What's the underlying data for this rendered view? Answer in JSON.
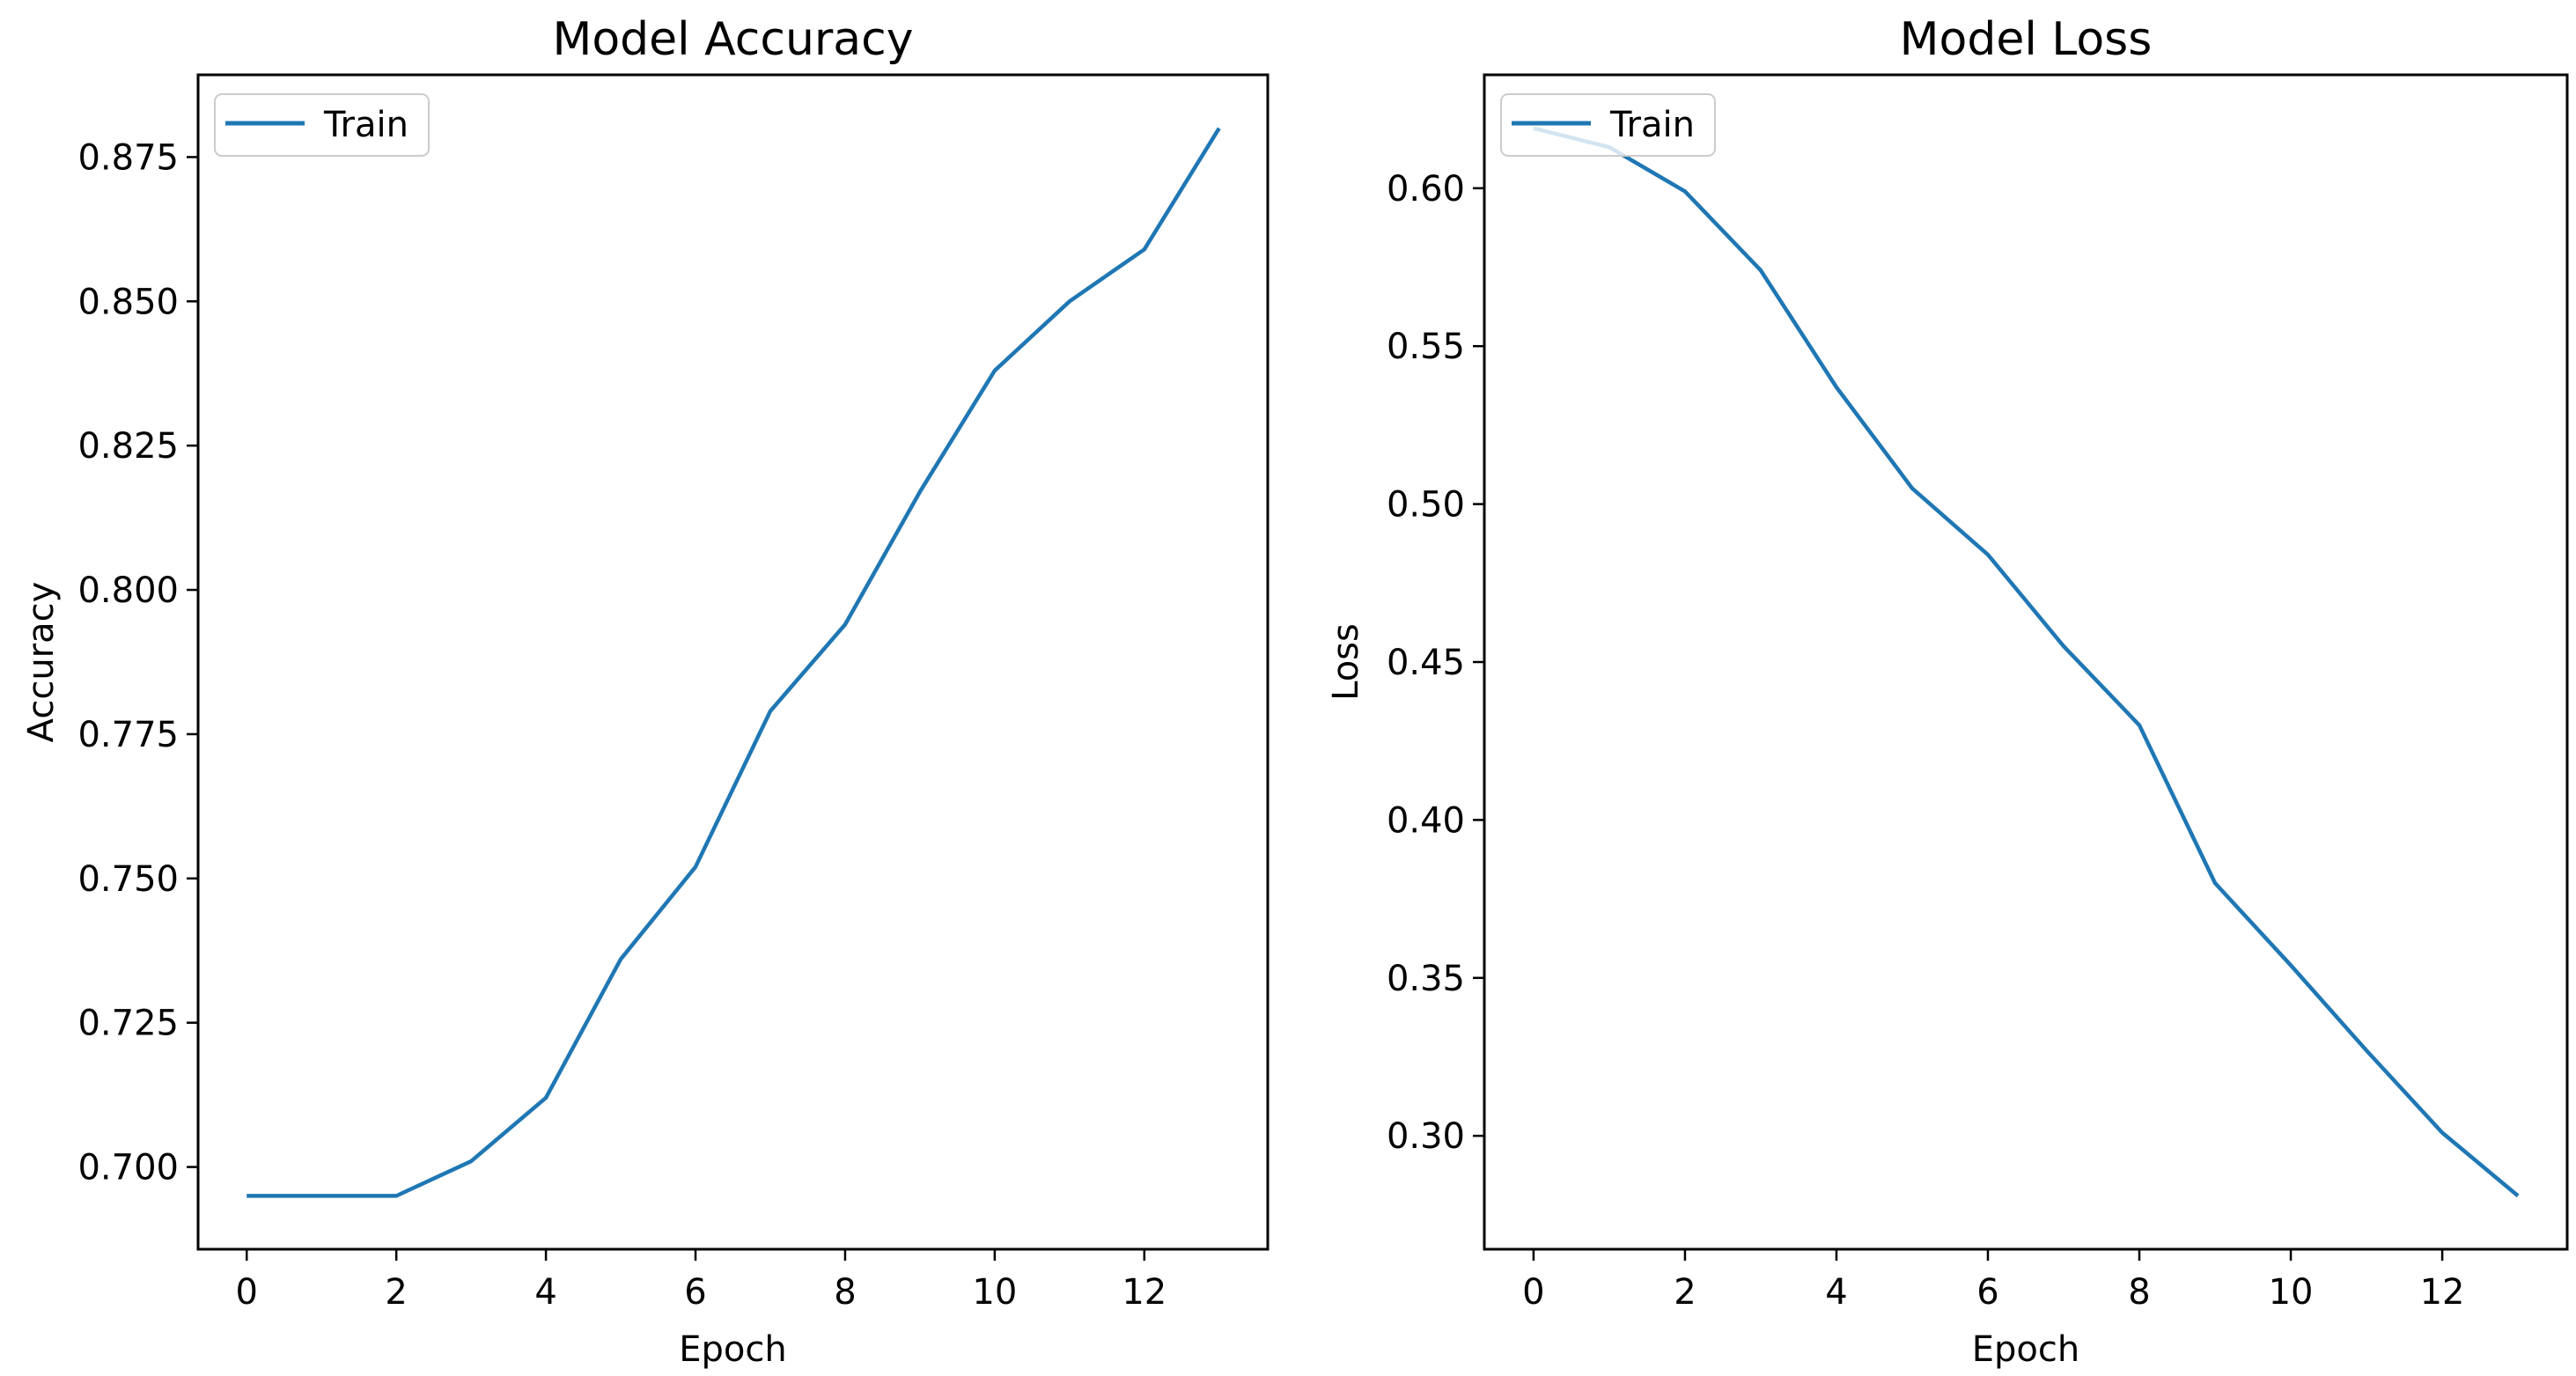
{
  "figure": {
    "background": "#ffffff",
    "text_color": "#000000",
    "spine_color": "#000000",
    "legend_border_color": "#cccccc",
    "legend_fill": "rgba(255,255,255,0.8)"
  },
  "chart_data": [
    {
      "type": "line",
      "title": "Model Accuracy",
      "xlabel": "Epoch",
      "ylabel": "Accuracy",
      "legend": {
        "entries": [
          "Train"
        ],
        "position": "upper-left"
      },
      "x": [
        0,
        1,
        2,
        3,
        4,
        5,
        6,
        7,
        8,
        9,
        10,
        11,
        12,
        13
      ],
      "series": [
        {
          "name": "Train",
          "color": "#1f77b4",
          "values": [
            0.695,
            0.695,
            0.695,
            0.701,
            0.712,
            0.736,
            0.752,
            0.779,
            0.794,
            0.817,
            0.838,
            0.85,
            0.859,
            0.88
          ]
        }
      ],
      "xticks": [
        0,
        2,
        4,
        6,
        8,
        10,
        12
      ],
      "xtick_labels": [
        "0",
        "2",
        "4",
        "6",
        "8",
        "10",
        "12"
      ],
      "yticks": [
        0.7,
        0.725,
        0.75,
        0.775,
        0.8,
        0.825,
        0.85,
        0.875
      ],
      "ytick_labels": [
        "0.700",
        "0.725",
        "0.750",
        "0.775",
        "0.800",
        "0.825",
        "0.850",
        "0.875"
      ],
      "xlim": [
        -0.65,
        13.65
      ],
      "ylim": [
        0.68575,
        0.88925
      ],
      "grid": false
    },
    {
      "type": "line",
      "title": "Model Loss",
      "xlabel": "Epoch",
      "ylabel": "Loss",
      "legend": {
        "entries": [
          "Train"
        ],
        "position": "upper-left"
      },
      "x": [
        0,
        1,
        2,
        3,
        4,
        5,
        6,
        7,
        8,
        9,
        10,
        11,
        12,
        13
      ],
      "series": [
        {
          "name": "Train",
          "color": "#1f77b4",
          "values": [
            0.619,
            0.613,
            0.599,
            0.574,
            0.537,
            0.505,
            0.484,
            0.455,
            0.43,
            0.38,
            0.354,
            0.327,
            0.301,
            0.281
          ]
        }
      ],
      "xticks": [
        0,
        2,
        4,
        6,
        8,
        10,
        12
      ],
      "xtick_labels": [
        "0",
        "2",
        "4",
        "6",
        "8",
        "10",
        "12"
      ],
      "yticks": [
        0.3,
        0.35,
        0.4,
        0.45,
        0.5,
        0.55,
        0.6
      ],
      "ytick_labels": [
        "0.30",
        "0.35",
        "0.40",
        "0.45",
        "0.50",
        "0.55",
        "0.60"
      ],
      "xlim": [
        -0.65,
        13.65
      ],
      "ylim": [
        0.2641,
        0.6359
      ],
      "grid": false
    }
  ]
}
